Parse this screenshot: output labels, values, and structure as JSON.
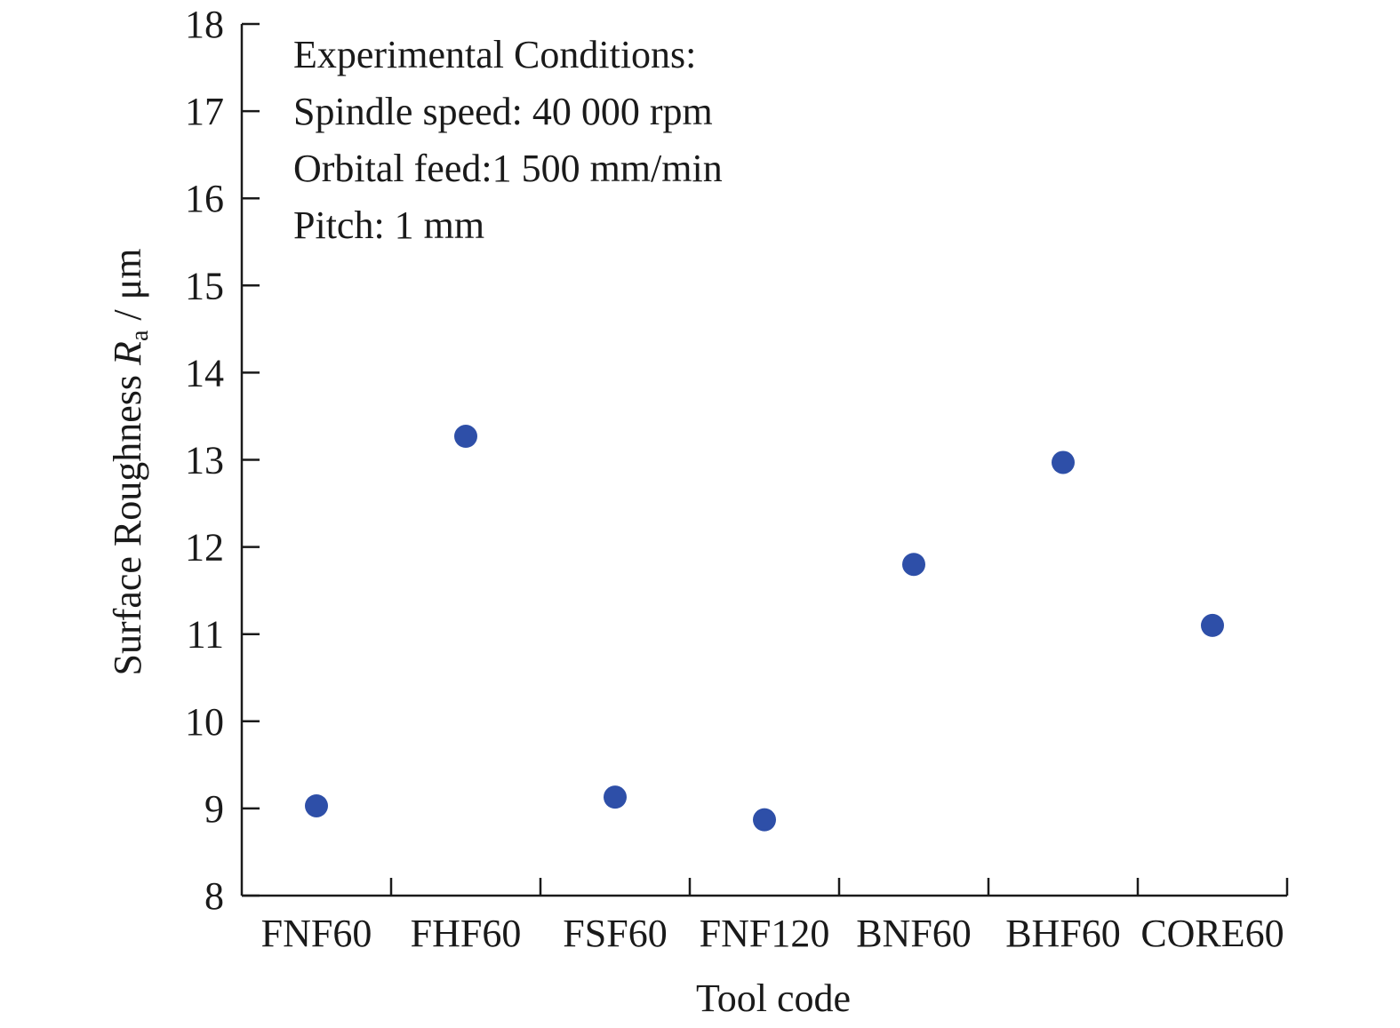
{
  "chart_data": {
    "type": "scatter",
    "title": "",
    "xlabel": "Tool code",
    "ylabel": {
      "prefix": "Surface Roughness ",
      "symbol": "R",
      "subscript": "a",
      "suffix": " / μm"
    },
    "categories": [
      "FNF60",
      "FHF60",
      "FSF60",
      "FNF120",
      "BNF60",
      "BHF60",
      "CORE60"
    ],
    "series": [
      {
        "values": [
          9.03,
          13.27,
          9.13,
          8.87,
          11.8,
          12.97,
          11.1
        ]
      }
    ],
    "ylim": [
      8,
      18
    ],
    "yticks": [
      "8",
      "9",
      "10",
      "11",
      "12",
      "13",
      "14",
      "15",
      "16",
      "17",
      "18"
    ],
    "grid": false,
    "legend": "none",
    "annotations": [
      "Experimental Conditions:",
      "Spindle speed: 40 000 rpm",
      "Orbital feed:1 500 mm/min",
      "Pitch: 1 mm"
    ],
    "colors": {
      "marker": "#2e4fa8",
      "axis": "#1a1a1a"
    }
  }
}
